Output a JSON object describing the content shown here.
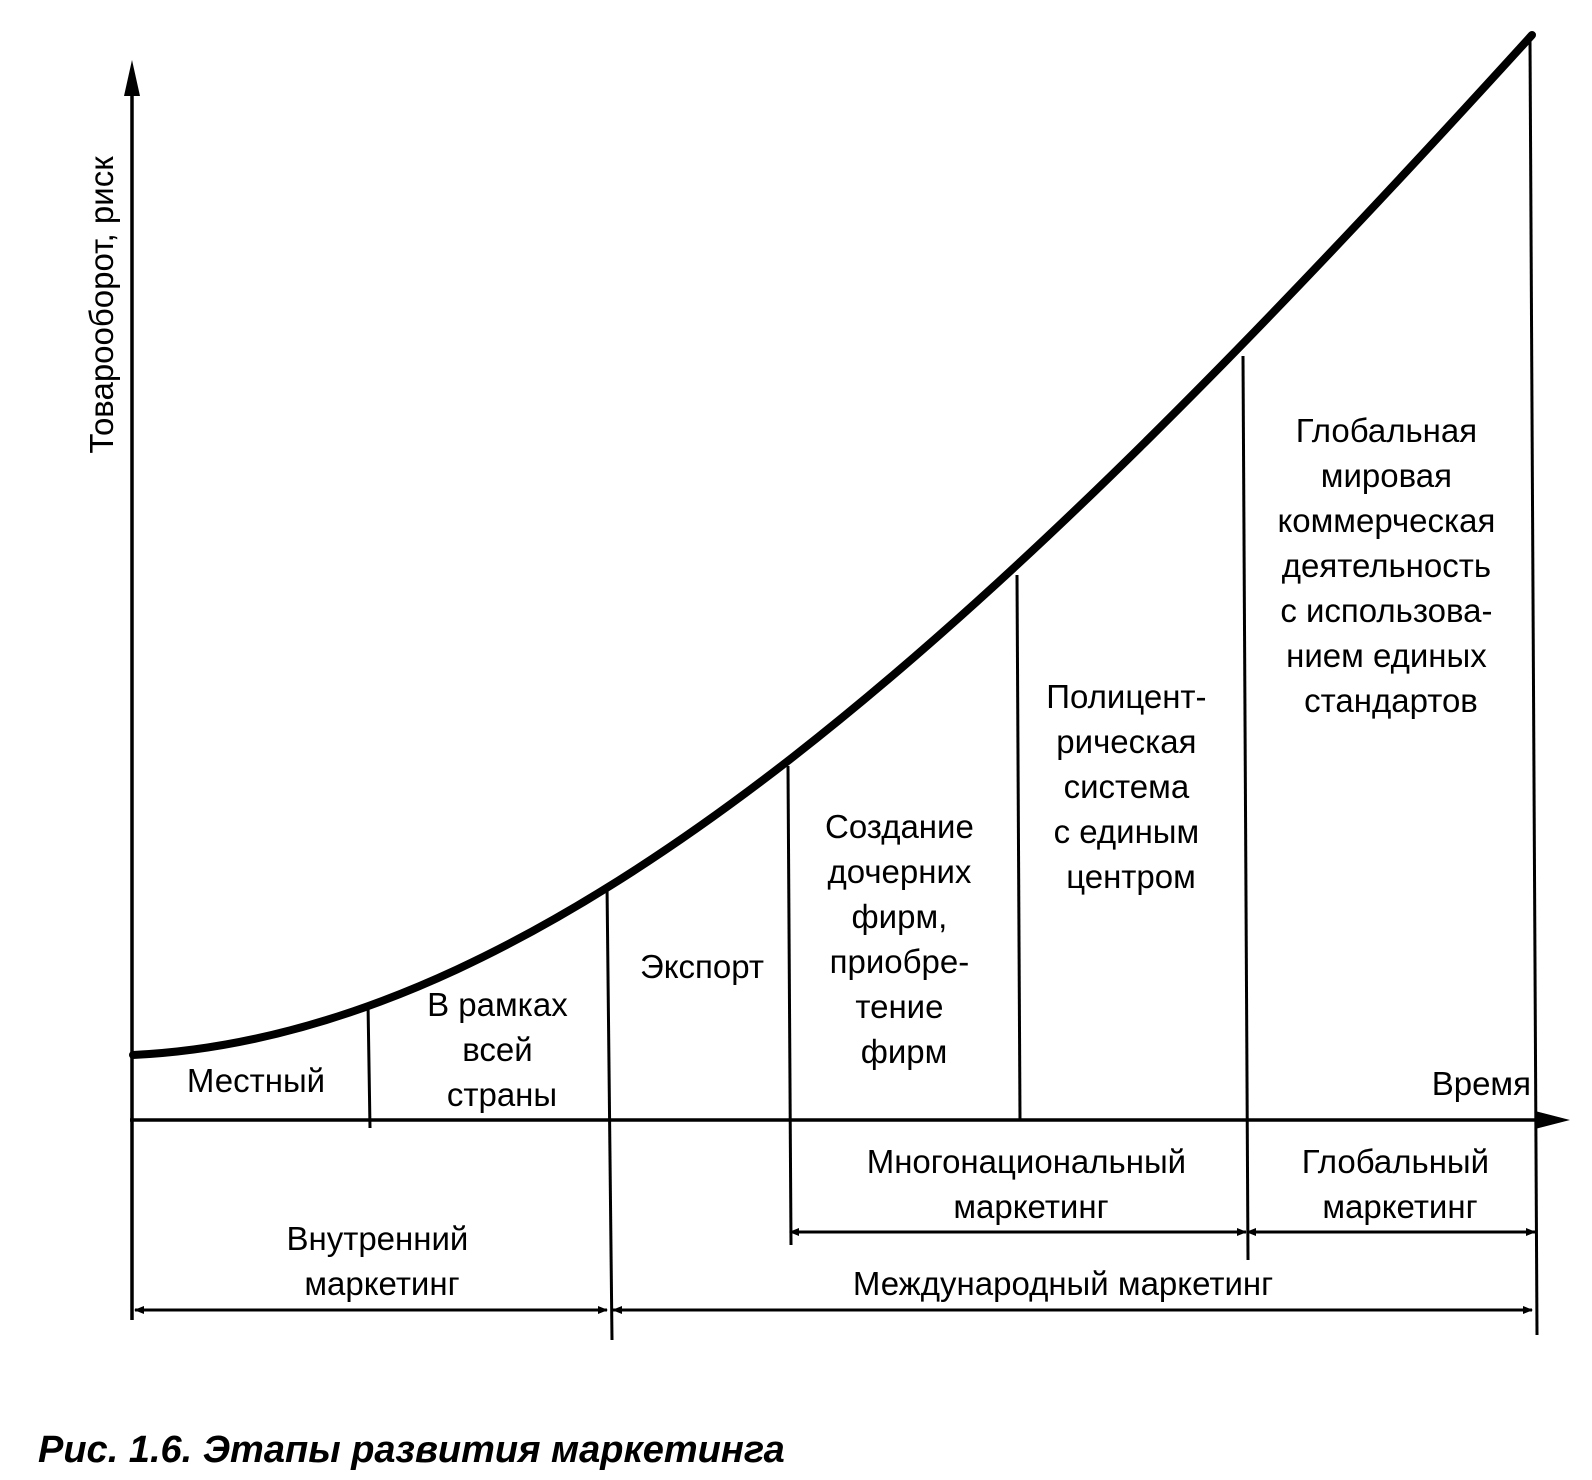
{
  "axes": {
    "y_label": "Товарооборот, риск",
    "x_label": "Время"
  },
  "stages": [
    {
      "id": "local",
      "lines": [
        "Местный"
      ]
    },
    {
      "id": "national",
      "lines": [
        "В рамках",
        "всей",
        "страны"
      ]
    },
    {
      "id": "export",
      "lines": [
        "Экспорт"
      ]
    },
    {
      "id": "subsidiaries",
      "lines": [
        "Создание",
        "дочерних",
        "фирм,",
        "приобре-",
        "тение",
        "фирм"
      ]
    },
    {
      "id": "polycentric",
      "lines": [
        "Полицент-",
        "рическая",
        "система",
        "с единым",
        "центром"
      ]
    },
    {
      "id": "global",
      "lines": [
        "Глобальная",
        "мировая",
        "коммерческая",
        "деятельность",
        "с использова-",
        "нием единых",
        "стандартов"
      ]
    }
  ],
  "spans": {
    "multinational": [
      "Многонациональный",
      "маркетинг"
    ],
    "global": [
      "Глобальный",
      "маркетинг"
    ],
    "domestic": [
      "Внутренний",
      "маркетинг"
    ],
    "international": [
      "Международный маркетинг"
    ]
  },
  "caption": "Рис. 1.6. Этапы развития маркетинга"
}
